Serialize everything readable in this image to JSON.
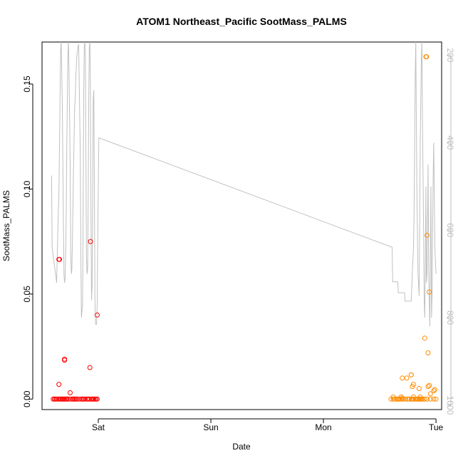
{
  "chart_data": {
    "type": "scatter",
    "title": "ATOM1 Northeast_Pacific SootMass_PALMS",
    "xlabel": "Date",
    "ylabel": "SootMass_PALMS",
    "x_ticks": [
      {
        "label": "Sat",
        "value": 1.0
      },
      {
        "label": "Sun",
        "value": 2.0
      },
      {
        "label": "Mon",
        "value": 3.0
      },
      {
        "label": "Tue",
        "value": 4.0
      }
    ],
    "xlim": [
      0.5,
      4.05
    ],
    "ylim": [
      -0.005,
      0.17
    ],
    "y_ticks": [
      0.0,
      0.05,
      0.1,
      0.15
    ],
    "y_tick_labels": [
      "0.00",
      "0.05",
      "0.10",
      "0.15"
    ],
    "y2_ticks": [
      200,
      400,
      600,
      800,
      1000
    ],
    "y2_tick_labels": [
      "200",
      "400",
      "600",
      "800",
      "1000"
    ],
    "y2lim": [
      1010,
      170
    ],
    "grid": false,
    "colors": {
      "series1": "#ff0000",
      "series2": "#ff8c00",
      "pressure_line": "#c0c0c0"
    },
    "series": [
      {
        "color": "#ff0000",
        "points": [
          [
            0.6,
            0.0
          ],
          [
            0.61,
            0.0
          ],
          [
            0.62,
            0.0
          ],
          [
            0.63,
            0.0
          ],
          [
            0.65,
            0.0
          ],
          [
            0.66,
            0.0
          ],
          [
            0.67,
            0.0
          ],
          [
            0.68,
            0.0
          ],
          [
            0.69,
            0.0
          ],
          [
            0.7,
            0.0
          ],
          [
            0.71,
            0.0
          ],
          [
            0.72,
            0.0
          ],
          [
            0.73,
            0.0
          ],
          [
            0.75,
            0.0
          ],
          [
            0.77,
            0.0
          ],
          [
            0.78,
            0.0
          ],
          [
            0.79,
            0.0
          ],
          [
            0.8,
            0.0
          ],
          [
            0.81,
            0.0
          ],
          [
            0.83,
            0.0
          ],
          [
            0.85,
            0.0
          ],
          [
            0.86,
            0.0
          ],
          [
            0.87,
            0.0
          ],
          [
            0.88,
            0.0
          ],
          [
            0.9,
            0.0
          ],
          [
            0.91,
            0.0
          ],
          [
            0.92,
            0.0
          ],
          [
            0.94,
            0.0
          ],
          [
            0.95,
            0.0
          ],
          [
            0.96,
            0.0
          ],
          [
            0.97,
            0.0
          ],
          [
            0.98,
            0.0
          ],
          [
            0.99,
            0.0
          ],
          [
            0.65,
            0.0665
          ],
          [
            0.655,
            0.0665
          ],
          [
            0.65,
            0.007
          ],
          [
            0.7,
            0.019
          ],
          [
            0.7,
            0.0185
          ],
          [
            0.75,
            0.003
          ],
          [
            0.93,
            0.075
          ],
          [
            0.925,
            0.015
          ],
          [
            0.99,
            0.04
          ]
        ]
      },
      {
        "color": "#ff8c00",
        "points": [
          [
            3.6,
            0.0
          ],
          [
            3.62,
            0.0
          ],
          [
            3.63,
            0.0
          ],
          [
            3.65,
            0.0
          ],
          [
            3.66,
            0.0
          ],
          [
            3.67,
            0.0
          ],
          [
            3.68,
            0.0
          ],
          [
            3.7,
            0.0
          ],
          [
            3.71,
            0.0
          ],
          [
            3.73,
            0.0
          ],
          [
            3.75,
            0.0
          ],
          [
            3.78,
            0.0
          ],
          [
            3.79,
            0.0
          ],
          [
            3.8,
            0.0
          ],
          [
            3.82,
            0.0
          ],
          [
            3.83,
            0.0
          ],
          [
            3.84,
            0.0
          ],
          [
            3.85,
            0.0
          ],
          [
            3.86,
            0.0
          ],
          [
            3.87,
            0.0
          ],
          [
            3.88,
            0.0
          ],
          [
            3.9,
            0.0
          ],
          [
            3.92,
            0.0
          ],
          [
            3.95,
            0.0
          ],
          [
            3.98,
            0.0
          ],
          [
            4.0,
            0.0
          ],
          [
            3.62,
            0.001
          ],
          [
            3.69,
            0.001
          ],
          [
            3.7,
            0.0005
          ],
          [
            3.76,
            0.0
          ],
          [
            3.8,
            0.001
          ],
          [
            3.83,
            0.0
          ],
          [
            3.86,
            0.001
          ],
          [
            3.7,
            0.01
          ],
          [
            3.74,
            0.01
          ],
          [
            3.78,
            0.0115
          ],
          [
            3.78,
            0.0115
          ],
          [
            3.8,
            0.007
          ],
          [
            3.79,
            0.006
          ],
          [
            3.85,
            0.005
          ],
          [
            3.9,
            0.029
          ],
          [
            3.93,
            0.006
          ],
          [
            3.94,
            0.0065
          ],
          [
            3.95,
            0.0025
          ],
          [
            3.98,
            0.004
          ],
          [
            3.99,
            0.0045
          ],
          [
            3.93,
            0.022
          ],
          [
            3.92,
            0.078
          ],
          [
            3.94,
            0.051
          ],
          [
            3.91,
            0.163
          ],
          [
            3.915,
            0.163
          ]
        ]
      }
    ],
    "pressure_line": [
      [
        0.585,
        475
      ],
      [
        0.59,
        640
      ],
      [
        0.6,
        660
      ],
      [
        0.61,
        680
      ],
      [
        0.62,
        700
      ],
      [
        0.63,
        720
      ],
      [
        0.645,
        555
      ],
      [
        0.65,
        520
      ],
      [
        0.66,
        300
      ],
      [
        0.665,
        190
      ],
      [
        0.67,
        170
      ],
      [
        0.68,
        300
      ],
      [
        0.69,
        580
      ],
      [
        0.695,
        700
      ],
      [
        0.7,
        720
      ],
      [
        0.705,
        710
      ],
      [
        0.71,
        650
      ],
      [
        0.715,
        560
      ],
      [
        0.72,
        400
      ],
      [
        0.73,
        200
      ],
      [
        0.735,
        170
      ],
      [
        0.74,
        240
      ],
      [
        0.75,
        450
      ],
      [
        0.755,
        650
      ],
      [
        0.76,
        700
      ],
      [
        0.765,
        690
      ],
      [
        0.77,
        620
      ],
      [
        0.78,
        460
      ],
      [
        0.79,
        320
      ],
      [
        0.795,
        300
      ],
      [
        0.8,
        250
      ],
      [
        0.81,
        200
      ],
      [
        0.82,
        180
      ],
      [
        0.825,
        175
      ],
      [
        0.83,
        250
      ],
      [
        0.84,
        420
      ],
      [
        0.845,
        650
      ],
      [
        0.85,
        800
      ],
      [
        0.86,
        770
      ],
      [
        0.865,
        560
      ],
      [
        0.87,
        300
      ],
      [
        0.875,
        180
      ],
      [
        0.88,
        170
      ],
      [
        0.885,
        200
      ],
      [
        0.89,
        430
      ],
      [
        0.895,
        660
      ],
      [
        0.9,
        700
      ],
      [
        0.905,
        690
      ],
      [
        0.91,
        540
      ],
      [
        0.915,
        300
      ],
      [
        0.92,
        180
      ],
      [
        0.925,
        170
      ],
      [
        0.93,
        280
      ],
      [
        0.935,
        560
      ],
      [
        0.94,
        760
      ],
      [
        0.945,
        730
      ],
      [
        0.95,
        520
      ],
      [
        0.955,
        300
      ],
      [
        0.96,
        280
      ],
      [
        0.965,
        500
      ],
      [
        0.97,
        760
      ],
      [
        0.975,
        815
      ],
      [
        0.98,
        815
      ],
      [
        0.985,
        815
      ],
      [
        0.99,
        770
      ],
      [
        0.995,
        620
      ],
      [
        1.0,
        500
      ],
      [
        1.005,
        389
      ],
      [
        3.61,
        639
      ],
      [
        3.615,
        718
      ],
      [
        3.66,
        718
      ],
      [
        3.665,
        743
      ],
      [
        3.72,
        743
      ],
      [
        3.725,
        762
      ],
      [
        3.75,
        762
      ],
      [
        3.78,
        762
      ],
      [
        3.79,
        695
      ],
      [
        3.8,
        640
      ],
      [
        3.805,
        560
      ],
      [
        3.81,
        400
      ],
      [
        3.815,
        250
      ],
      [
        3.82,
        170
      ],
      [
        3.83,
        500
      ],
      [
        3.84,
        700
      ],
      [
        3.85,
        750
      ],
      [
        3.86,
        400
      ],
      [
        3.87,
        200
      ],
      [
        3.875,
        170
      ],
      [
        3.88,
        350
      ],
      [
        3.89,
        600
      ],
      [
        3.895,
        760
      ],
      [
        3.9,
        800
      ],
      [
        3.905,
        680
      ],
      [
        3.91,
        500
      ],
      [
        3.915,
        720
      ],
      [
        3.92,
        700
      ],
      [
        3.925,
        600
      ],
      [
        3.93,
        450
      ],
      [
        3.935,
        690
      ],
      [
        3.94,
        760
      ],
      [
        3.945,
        820
      ],
      [
        3.95,
        650
      ],
      [
        3.955,
        500
      ],
      [
        3.96,
        800
      ],
      [
        3.965,
        750
      ],
      [
        3.97,
        600
      ],
      [
        3.975,
        480
      ],
      [
        3.98,
        400
      ],
      [
        3.985,
        520
      ],
      [
        3.99,
        640
      ],
      [
        4.0,
        700
      ]
    ]
  }
}
